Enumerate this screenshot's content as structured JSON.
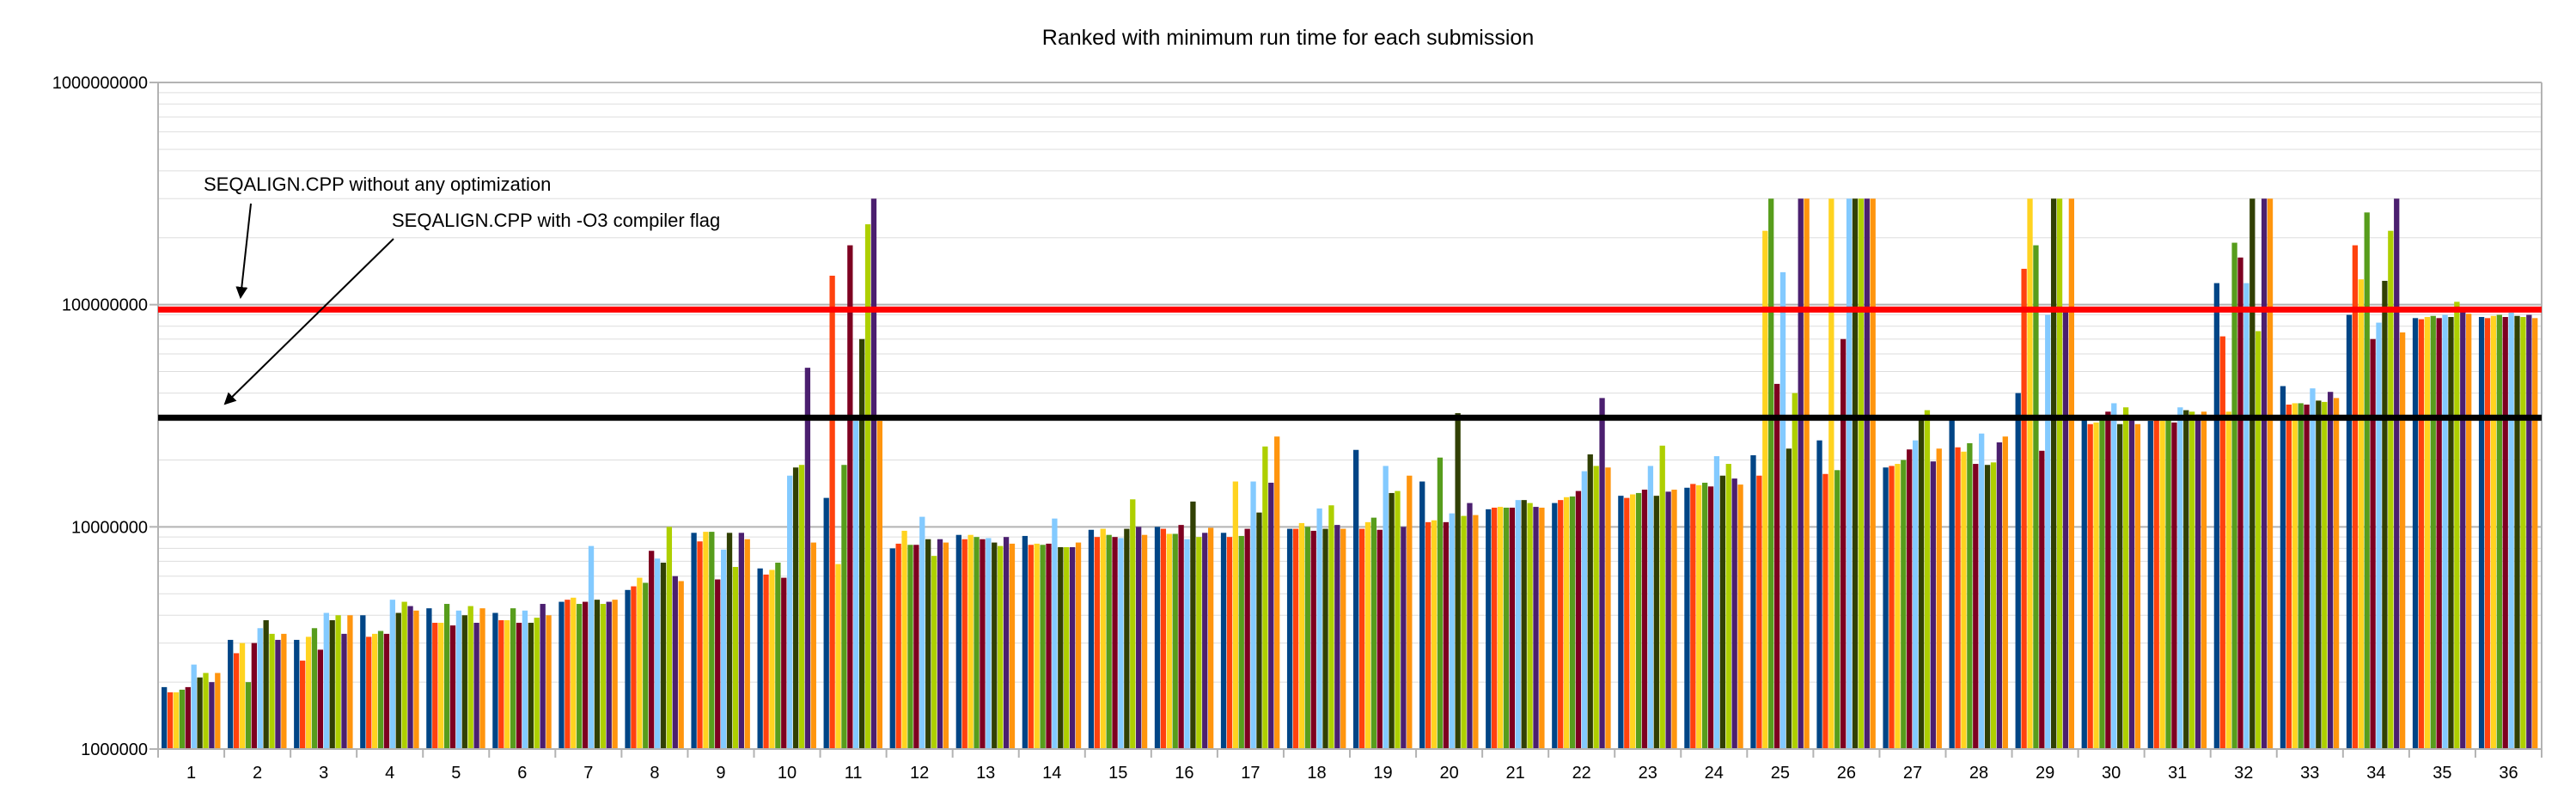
{
  "chart_data": {
    "type": "bar",
    "title": "Ranked with minimum run time for each submission",
    "xlabel": "",
    "ylabel": "",
    "y_scale": "log",
    "ylim": [
      1000000,
      1000000000
    ],
    "y_ticks": [
      "1000000",
      "10000000",
      "100000000",
      "1000000000"
    ],
    "grid": true,
    "legend": "none",
    "categories": [
      "1",
      "2",
      "3",
      "4",
      "5",
      "6",
      "7",
      "8",
      "9",
      "10",
      "11",
      "12",
      "13",
      "14",
      "15",
      "16",
      "17",
      "18",
      "19",
      "20",
      "21",
      "22",
      "23",
      "24",
      "25",
      "26",
      "27",
      "28",
      "29",
      "30",
      "31",
      "32",
      "33",
      "34",
      "35",
      "36"
    ],
    "series_colors": [
      "#004586",
      "#ff420e",
      "#ffd320",
      "#579d1c",
      "#7e0021",
      "#83caff",
      "#314004",
      "#aecf00",
      "#4b1f6f",
      "#ff950e"
    ],
    "values": [
      [
        1900000.0,
        1800000.0,
        1800000.0,
        1850000.0,
        1900000.0,
        2400000.0,
        2100000.0,
        2200000.0,
        2000000.0,
        2200000.0
      ],
      [
        3100000.0,
        2700000.0,
        3000000.0,
        2000000.0,
        3000000.0,
        3500000.0,
        3800000.0,
        3300000.0,
        3100000.0,
        3300000.0
      ],
      [
        3100000.0,
        2500000.0,
        3200000.0,
        3500000.0,
        2800000.0,
        4100000.0,
        3800000.0,
        4000000.0,
        3300000.0,
        4000000.0
      ],
      [
        4000000.0,
        3200000.0,
        3300000.0,
        3400000.0,
        3300000.0,
        4700000.0,
        4100000.0,
        4600000.0,
        4400000.0,
        4200000.0
      ],
      [
        4300000.0,
        3700000.0,
        3700000.0,
        4500000.0,
        3600000.0,
        4200000.0,
        4000000.0,
        4400000.0,
        3700000.0,
        4300000.0
      ],
      [
        4100000.0,
        3800000.0,
        3800000.0,
        4300000.0,
        3700000.0,
        4200000.0,
        3700000.0,
        3900000.0,
        4500000.0,
        4000000.0
      ],
      [
        4600000.0,
        4700000.0,
        4800000.0,
        4500000.0,
        4600000.0,
        8200000.0,
        4700000.0,
        4500000.0,
        4600000.0,
        4700000.0
      ],
      [
        5200000.0,
        5400000.0,
        5900000.0,
        5600000.0,
        7800000.0,
        7200000.0,
        6900000.0,
        10000000.0,
        6000000.0,
        5700000.0
      ],
      [
        9400000.0,
        8600000.0,
        9500000.0,
        9500000.0,
        5800000.0,
        7900000.0,
        9400000.0,
        6600000.0,
        9400000.0,
        8800000.0
      ],
      [
        6500000.0,
        6100000.0,
        6400000.0,
        6900000.0,
        5900000.0,
        17000000.0,
        18500000.0,
        19000000.0,
        52000000.0,
        8500000.0
      ],
      [
        13500000.0,
        135000000.0,
        6800000.0,
        19000000.0,
        185000000.0,
        30000000.0,
        70000000.0,
        230000000.0,
        300000000.0,
        30000000.0
      ],
      [
        8000000.0,
        8400000.0,
        9600000.0,
        8300000.0,
        8300000.0,
        11100000.0,
        8800000.0,
        7400000.0,
        8800000.0,
        8500000.0
      ],
      [
        9200000.0,
        8800000.0,
        9200000.0,
        9000000.0,
        8800000.0,
        8900000.0,
        8500000.0,
        8200000.0,
        9000000.0,
        8400000.0
      ],
      [
        9100000.0,
        8300000.0,
        8400000.0,
        8300000.0,
        8400000.0,
        10900000.0,
        8100000.0,
        8100000.0,
        8100000.0,
        8500000.0
      ],
      [
        9700000.0,
        9000000.0,
        9800000.0,
        9200000.0,
        9000000.0,
        8900000.0,
        9800000.0,
        13300000.0,
        10000000.0,
        9200000.0
      ],
      [
        10000000.0,
        9800000.0,
        9300000.0,
        9300000.0,
        10200000.0,
        8800000.0,
        13000000.0,
        9000000.0,
        9400000.0,
        9900000.0
      ],
      [
        9400000.0,
        9000000.0,
        16000000.0,
        9100000.0,
        9800000.0,
        16000000.0,
        11600000.0,
        23000000.0,
        15800000.0,
        25500000.0
      ],
      [
        9800000.0,
        9800000.0,
        10400000.0,
        10000000.0,
        9600000.0,
        12100000.0,
        9800000.0,
        12500000.0,
        10200000.0,
        9800000.0
      ],
      [
        22200000.0,
        9800000.0,
        10500000.0,
        11000000.0,
        9700000.0,
        18800000.0,
        14200000.0,
        14500000.0,
        10000000.0,
        17000000.0
      ],
      [
        16000000.0,
        10500000.0,
        10700000.0,
        20500000.0,
        10500000.0,
        11500000.0,
        32500000.0,
        11200000.0,
        12800000.0,
        11300000.0
      ],
      [
        12000000.0,
        12200000.0,
        12300000.0,
        12200000.0,
        12200000.0,
        13200000.0,
        13200000.0,
        12800000.0,
        12300000.0,
        12200000.0
      ],
      [
        12800000.0,
        13200000.0,
        13600000.0,
        13700000.0,
        14500000.0,
        17800000.0,
        21200000.0,
        18800000.0,
        38000000.0,
        18500000.0
      ],
      [
        13800000.0,
        13500000.0,
        14000000.0,
        14200000.0,
        14700000.0,
        18800000.0,
        13800000.0,
        23200000.0,
        14400000.0,
        14700000.0
      ],
      [
        15000000.0,
        15600000.0,
        15400000.0,
        15800000.0,
        15200000.0,
        20800000.0,
        17000000.0,
        19200000.0,
        16500000.0,
        15500000.0
      ],
      [
        21000000.0,
        17000000.0,
        215000000.0,
        300000000.0,
        44000000.0,
        140000000.0,
        22500000.0,
        40000000.0,
        300000000.0,
        300000000.0
      ],
      [
        24500000.0,
        17300000.0,
        300000000.0,
        18000000.0,
        70000000.0,
        300000000.0,
        300000000.0,
        300000000.0,
        300000000.0,
        300000000.0
      ],
      [
        18500000.0,
        18800000.0,
        19200000.0,
        20000000.0,
        22300000.0,
        24500000.0,
        30500000.0,
        33500000.0,
        19700000.0,
        22500000.0
      ],
      [
        31000000.0,
        22800000.0,
        21800000.0,
        23800000.0,
        19200000.0,
        26300000.0,
        19000000.0,
        19500000.0,
        24000000.0,
        25500000.0
      ],
      [
        40000000.0,
        145000000.0,
        300000000.0,
        185000000.0,
        22000000.0,
        90000000.0,
        300000000.0,
        300000000.0,
        95000000.0,
        300000000.0
      ],
      [
        31500000.0,
        29000000.0,
        29500000.0,
        31500000.0,
        33000000.0,
        36000000.0,
        29000000.0,
        34500000.0,
        31000000.0,
        29000000.0
      ],
      [
        30000000.0,
        30500000.0,
        30000000.0,
        31500000.0,
        29500000.0,
        34500000.0,
        33500000.0,
        33000000.0,
        32000000.0,
        33000000.0
      ],
      [
        125000000.0,
        72000000.0,
        33000000.0,
        190000000.0,
        163000000.0,
        125000000.0,
        300000000.0,
        76000000.0,
        300000000.0,
        300000000.0
      ],
      [
        43000000.0,
        35500000.0,
        36000000.0,
        36000000.0,
        35500000.0,
        42000000.0,
        37000000.0,
        36500000.0,
        40500000.0,
        38000000.0
      ],
      [
        90000000.0,
        185000000.0,
        130000000.0,
        260000000.0,
        70000000.0,
        83000000.0,
        128000000.0,
        215000000.0,
        300000000.0,
        75000000.0
      ],
      [
        87000000.0,
        86000000.0,
        88000000.0,
        89000000.0,
        87000000.0,
        90000000.0,
        88000000.0,
        103000000.0,
        94000000.0,
        91000000.0
      ],
      [
        88000000.0,
        87000000.0,
        89000000.0,
        90000000.0,
        88000000.0,
        92000000.0,
        89000000.0,
        88000000.0,
        90000000.0,
        87000000.0
      ]
    ],
    "reference_lines": [
      {
        "value": 95000000,
        "color": "#ff0000"
      },
      {
        "value": 31000000,
        "color": "#000000"
      }
    ],
    "annotations": [
      "SEQALIGN.CPP without any optimization",
      "SEQALIGN.CPP with -O3 compiler flag"
    ]
  }
}
